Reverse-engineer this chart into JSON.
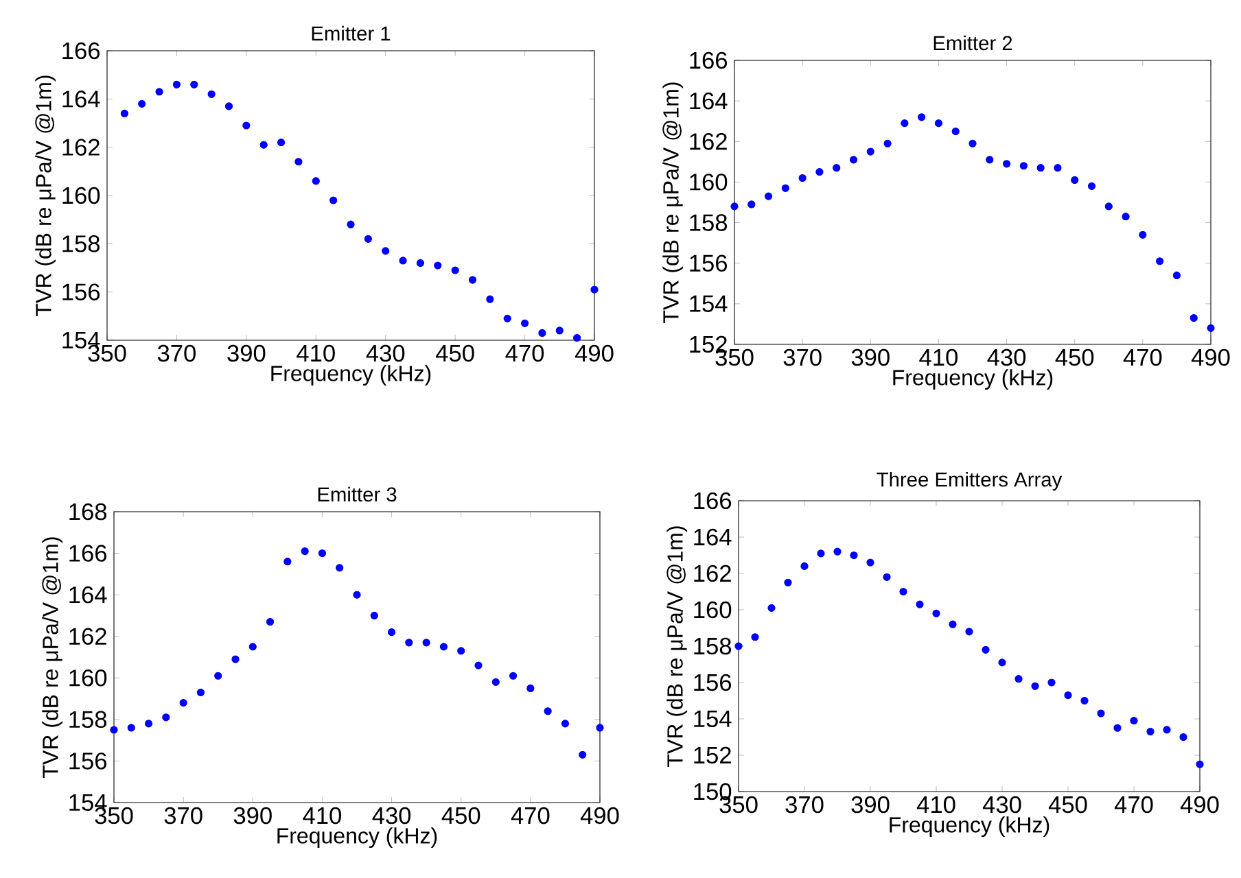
{
  "chart_data": [
    {
      "type": "scatter",
      "title": "Emitter 1",
      "xlabel": "Frequency (kHz)",
      "ylabel": "TVR (dB re μPa/V @1m)",
      "color": "#0000ff",
      "marker": "circle",
      "xlim": [
        350,
        490
      ],
      "ylim": [
        154,
        166
      ],
      "xticks": [
        350,
        370,
        390,
        410,
        430,
        450,
        470,
        490
      ],
      "yticks": [
        154,
        156,
        158,
        160,
        162,
        164,
        166
      ],
      "x": [
        355,
        360,
        365,
        370,
        375,
        380,
        385,
        390,
        395,
        400,
        405,
        410,
        415,
        420,
        425,
        430,
        435,
        440,
        445,
        450,
        455,
        460,
        465,
        470,
        475,
        480,
        485,
        490
      ],
      "values": [
        163.4,
        163.8,
        164.3,
        164.6,
        164.6,
        164.2,
        163.7,
        162.9,
        162.1,
        162.2,
        161.4,
        160.6,
        159.8,
        158.8,
        158.2,
        157.7,
        157.3,
        157.2,
        157.1,
        156.9,
        156.5,
        155.7,
        154.9,
        154.7,
        154.3,
        154.4,
        154.1,
        156.1
      ]
    },
    {
      "type": "scatter",
      "title": "Emitter 2",
      "xlabel": "Frequency (kHz)",
      "ylabel": "TVR (dB re μPa/V @1m)",
      "color": "#0000ff",
      "marker": "circle",
      "xlim": [
        350,
        490
      ],
      "ylim": [
        152,
        166
      ],
      "xticks": [
        350,
        370,
        390,
        410,
        430,
        450,
        470,
        490
      ],
      "yticks": [
        152,
        154,
        156,
        158,
        160,
        162,
        164,
        166
      ],
      "x": [
        350,
        355,
        360,
        365,
        370,
        375,
        380,
        385,
        390,
        395,
        400,
        405,
        410,
        415,
        420,
        425,
        430,
        435,
        440,
        445,
        450,
        455,
        460,
        465,
        470,
        475,
        480,
        485,
        490
      ],
      "values": [
        158.8,
        158.9,
        159.3,
        159.7,
        160.2,
        160.5,
        160.7,
        161.1,
        161.5,
        161.9,
        162.9,
        163.2,
        162.9,
        162.5,
        161.9,
        161.1,
        160.9,
        160.8,
        160.7,
        160.7,
        160.1,
        159.8,
        158.8,
        158.3,
        157.4,
        156.1,
        155.4,
        153.3,
        152.8
      ]
    },
    {
      "type": "scatter",
      "title": "Emitter 3",
      "xlabel": "Frequency (kHz)",
      "ylabel": "TVR (dB re μPa/V @1m)",
      "color": "#0000ff",
      "marker": "circle",
      "xlim": [
        350,
        490
      ],
      "ylim": [
        154,
        168
      ],
      "xticks": [
        350,
        370,
        390,
        410,
        430,
        450,
        470,
        490
      ],
      "yticks": [
        154,
        156,
        158,
        160,
        162,
        164,
        166,
        168
      ],
      "x": [
        350,
        355,
        360,
        365,
        370,
        375,
        380,
        385,
        390,
        395,
        400,
        405,
        410,
        415,
        420,
        425,
        430,
        435,
        440,
        445,
        450,
        455,
        460,
        465,
        470,
        475,
        480,
        485,
        490
      ],
      "values": [
        157.5,
        157.6,
        157.8,
        158.1,
        158.8,
        159.3,
        160.1,
        160.9,
        161.5,
        162.7,
        165.6,
        166.1,
        166.0,
        165.3,
        164.0,
        163.0,
        162.2,
        161.7,
        161.7,
        161.5,
        161.3,
        160.6,
        159.8,
        160.1,
        159.5,
        158.4,
        157.8,
        156.3,
        157.6
      ]
    },
    {
      "type": "scatter",
      "title": "Three Emitters Array",
      "xlabel": "Frequency (kHz)",
      "ylabel": "TVR (dB re μPa/V @1m)",
      "color": "#0000ff",
      "marker": "circle",
      "xlim": [
        350,
        490
      ],
      "ylim": [
        150,
        166
      ],
      "xticks": [
        350,
        370,
        390,
        410,
        430,
        450,
        470,
        490
      ],
      "yticks": [
        150,
        152,
        154,
        156,
        158,
        160,
        162,
        164,
        166
      ],
      "x": [
        350,
        355,
        360,
        365,
        370,
        375,
        380,
        385,
        390,
        395,
        400,
        405,
        410,
        415,
        420,
        425,
        430,
        435,
        440,
        445,
        450,
        455,
        460,
        465,
        470,
        475,
        480,
        485,
        490
      ],
      "values": [
        158.0,
        158.5,
        160.1,
        161.5,
        162.4,
        163.1,
        163.2,
        163.0,
        162.6,
        161.8,
        161.0,
        160.3,
        159.8,
        159.2,
        158.8,
        157.8,
        157.1,
        156.2,
        155.8,
        156.0,
        155.3,
        155.0,
        154.3,
        153.5,
        153.9,
        153.3,
        153.4,
        153.0,
        151.5
      ]
    }
  ]
}
